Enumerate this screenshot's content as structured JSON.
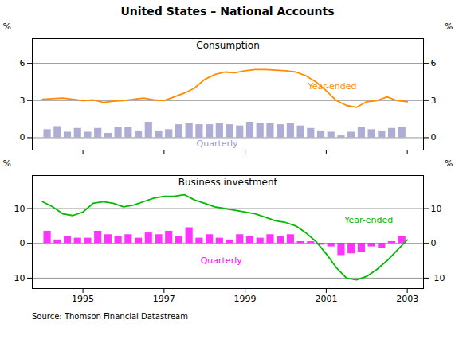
{
  "title": "United States – National Accounts",
  "source": "Source: Thomson Financial Datastream",
  "chart_data": [
    {
      "type": "bar",
      "title": "Consumption",
      "xlim": [
        1993.75,
        2003.4
      ],
      "xticks": [
        1995,
        1997,
        1999,
        2001,
        2003
      ],
      "ylim": [
        -1.0,
        8.0
      ],
      "yticks": [
        0,
        3,
        6
      ],
      "ylabel": "%",
      "y2lim": [
        -1.0,
        8.0
      ],
      "y2ticks": [
        0,
        3,
        6
      ],
      "y2label": "%",
      "grid": true,
      "tick_labels": "y",
      "series": [
        {
          "type": "bar",
          "color": "#9999CC",
          "x": [
            1994.125,
            1994.375,
            1994.625,
            1994.875,
            1995.125,
            1995.375,
            1995.625,
            1995.875,
            1996.125,
            1996.375,
            1996.625,
            1996.875,
            1997.125,
            1997.375,
            1997.625,
            1997.875,
            1998.125,
            1998.375,
            1998.625,
            1998.875,
            1999.125,
            1999.375,
            1999.625,
            1999.875,
            2000.125,
            2000.375,
            2000.625,
            2000.875,
            2001.125,
            2001.375,
            2001.625,
            2001.875,
            2002.125,
            2002.375,
            2002.625,
            2002.875
          ],
          "values": [
            0.65,
            0.9,
            0.45,
            0.75,
            0.45,
            0.75,
            0.35,
            0.85,
            0.85,
            0.55,
            1.25,
            0.55,
            0.65,
            1.05,
            1.15,
            1.05,
            1.05,
            1.15,
            1.05,
            0.95,
            1.25,
            1.15,
            1.15,
            1.05,
            1.15,
            0.95,
            0.75,
            0.55,
            0.45,
            0.15,
            0.45,
            0.85,
            0.65,
            0.55,
            0.75,
            0.85
          ]
        },
        {
          "type": "line",
          "color": "#FF8C00",
          "x": [
            1994.0,
            1994.25,
            1994.5,
            1994.75,
            1995.0,
            1995.25,
            1995.5,
            1995.75,
            1996.0,
            1996.25,
            1996.5,
            1996.75,
            1997.0,
            1997.25,
            1997.5,
            1997.75,
            1998.0,
            1998.25,
            1998.5,
            1998.75,
            1999.0,
            1999.25,
            1999.5,
            1999.75,
            2000.0,
            2000.25,
            2000.5,
            2000.75,
            2001.0,
            2001.25,
            2001.5,
            2001.75,
            2002.0,
            2002.25,
            2002.5,
            2002.75,
            2003.0
          ],
          "values": [
            3.1,
            3.15,
            3.2,
            3.1,
            3.0,
            3.05,
            2.85,
            2.95,
            3.0,
            3.1,
            3.2,
            3.05,
            3.0,
            3.3,
            3.6,
            4.0,
            4.7,
            5.1,
            5.3,
            5.25,
            5.4,
            5.5,
            5.5,
            5.45,
            5.4,
            5.3,
            5.0,
            4.5,
            3.8,
            3.0,
            2.6,
            2.45,
            2.9,
            3.0,
            3.3,
            3.0,
            2.9
          ]
        }
      ],
      "annotations": [
        {
          "text": "Year-ended",
          "x": 2000.55,
          "y": 3.9,
          "color": "#FF8C00"
        },
        {
          "text": "Quarterly",
          "x": 1997.8,
          "y": -0.72,
          "color": "#9999CC"
        }
      ]
    },
    {
      "type": "bar",
      "title": "Business investment",
      "xlim": [
        1993.75,
        2003.4
      ],
      "xticks": [
        1995,
        1997,
        1999,
        2001,
        2003
      ],
      "ylim": [
        -13.0,
        19.5
      ],
      "yticks": [
        -10,
        0,
        10
      ],
      "ylabel": "%",
      "y2lim": [
        -13.0,
        19.5
      ],
      "y2ticks": [
        -10,
        0,
        10
      ],
      "y2label": "%",
      "grid": true,
      "series": [
        {
          "type": "bar",
          "color": "#FF00FF",
          "x": [
            1994.125,
            1994.375,
            1994.625,
            1994.875,
            1995.125,
            1995.375,
            1995.625,
            1995.875,
            1996.125,
            1996.375,
            1996.625,
            1996.875,
            1997.125,
            1997.375,
            1997.625,
            1997.875,
            1998.125,
            1998.375,
            1998.625,
            1998.875,
            1999.125,
            1999.375,
            1999.625,
            1999.875,
            2000.125,
            2000.375,
            2000.625,
            2000.875,
            2001.125,
            2001.375,
            2001.625,
            2001.875,
            2002.125,
            2002.375,
            2002.625,
            2002.875
          ],
          "values": [
            3.5,
            1.0,
            2.0,
            1.5,
            1.5,
            3.5,
            2.5,
            2.0,
            2.5,
            1.5,
            3.0,
            2.5,
            3.5,
            2.0,
            4.5,
            1.5,
            2.5,
            1.5,
            1.0,
            2.5,
            2.0,
            1.5,
            2.5,
            2.0,
            2.5,
            0.5,
            0.5,
            -0.5,
            -1.0,
            -3.5,
            -3.0,
            -2.5,
            -1.0,
            -1.5,
            0.5,
            2.0
          ]
        },
        {
          "type": "line",
          "color": "#00BB00",
          "x": [
            1994.0,
            1994.25,
            1994.5,
            1994.75,
            1995.0,
            1995.25,
            1995.5,
            1995.75,
            1996.0,
            1996.25,
            1996.5,
            1996.75,
            1997.0,
            1997.25,
            1997.5,
            1997.75,
            1998.0,
            1998.25,
            1998.5,
            1998.75,
            1999.0,
            1999.25,
            1999.5,
            1999.75,
            2000.0,
            2000.25,
            2000.5,
            2000.75,
            2001.0,
            2001.25,
            2001.5,
            2001.75,
            2002.0,
            2002.25,
            2002.5,
            2002.75,
            2003.0
          ],
          "values": [
            12.0,
            10.5,
            8.5,
            8.0,
            9.0,
            11.5,
            12.0,
            11.5,
            10.5,
            11.0,
            12.0,
            13.0,
            13.5,
            13.5,
            14.0,
            12.5,
            11.5,
            10.5,
            10.0,
            9.5,
            9.0,
            8.5,
            7.5,
            6.5,
            6.0,
            5.0,
            3.0,
            0.5,
            -3.0,
            -7.0,
            -10.0,
            -10.5,
            -9.5,
            -7.5,
            -5.0,
            -2.0,
            1.0
          ]
        }
      ],
      "annotations": [
        {
          "text": "Year-ended",
          "x": 2001.45,
          "y": 5.8,
          "color": "#00BB00"
        },
        {
          "text": "Quarterly",
          "x": 1997.9,
          "y": -5.8,
          "color": "#FF00FF"
        }
      ]
    }
  ]
}
